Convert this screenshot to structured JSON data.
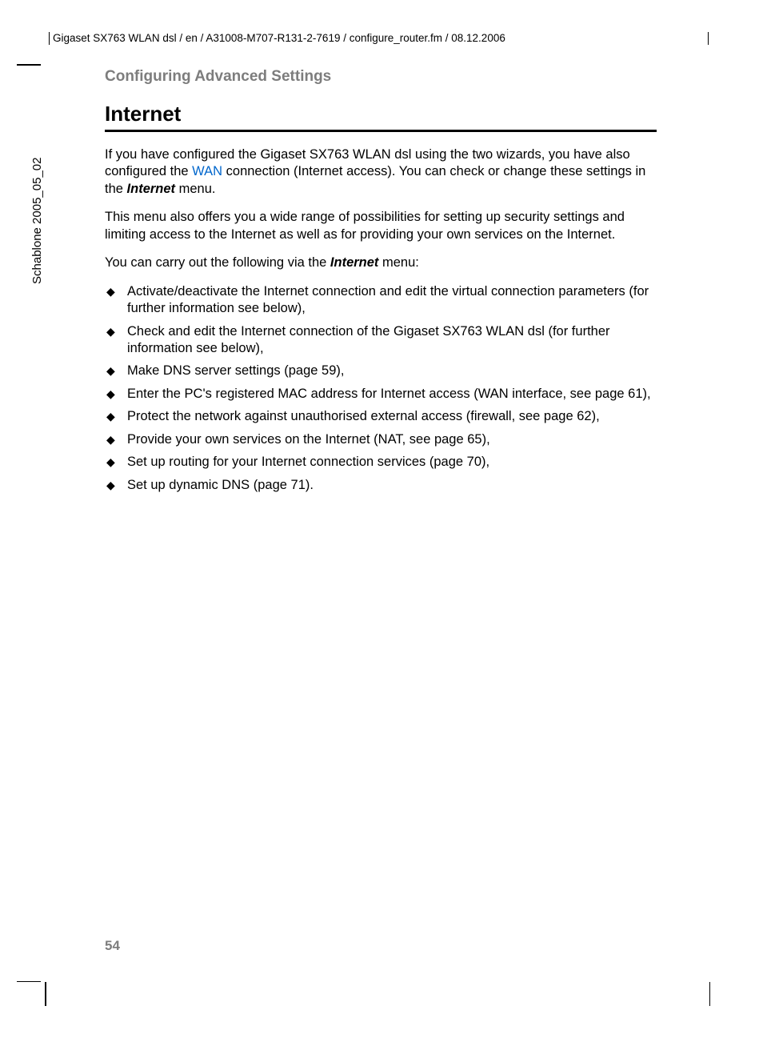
{
  "colors": {
    "text": "#000000",
    "subtitle": "#7d7d7d",
    "link": "#0066cc",
    "rule": "#000000",
    "background": "#ffffff"
  },
  "typography": {
    "body_fontsize_pt": 12,
    "title_fontsize_pt": 20,
    "subtitle_fontsize_pt": 14,
    "sidebar_fontsize_pt": 11,
    "header_fontsize_pt": 10
  },
  "header": {
    "path": "Gigaset SX763 WLAN dsl / en / A31008-M707-R131-2-7619 / configure_router.fm / 08.12.2006"
  },
  "sidebar": {
    "template_id": "Schablone 2005_05_02"
  },
  "page": {
    "number": "54"
  },
  "content": {
    "subtitle": "Configuring Advanced Settings",
    "title": "Internet",
    "para1": {
      "t1": "If you have configured the Gigaset SX763 WLAN dsl using the two wizards, you have also configured the ",
      "link": "WAN",
      "t2": " connection (Internet access). You can check or change these settings in the ",
      "bold": "Internet",
      "t3": " menu."
    },
    "para2": "This menu also offers you a wide range of possibilities for setting up security settings and limiting access to the Internet as well as for providing your own services on the Internet.",
    "para3": {
      "t1": "You can carry out the following via the ",
      "bold": "Internet",
      "t2": " menu:"
    },
    "bullets": [
      "Activate/deactivate the Internet connection and edit the virtual connection parameters (for further information see below),",
      "Check and edit the Internet connection of the Gigaset SX763 WLAN dsl (for further information see below),",
      "Make DNS server settings (page 59),",
      "Enter the PC's registered MAC address for Internet access (WAN interface, see page 61),",
      "Protect the network against unauthorised external access (firewall, see page 62),",
      "Provide your own services on the Internet (NAT, see page 65),",
      "Set up routing for your Internet connection services (page 70),",
      "Set up dynamic DNS (page 71)."
    ]
  }
}
